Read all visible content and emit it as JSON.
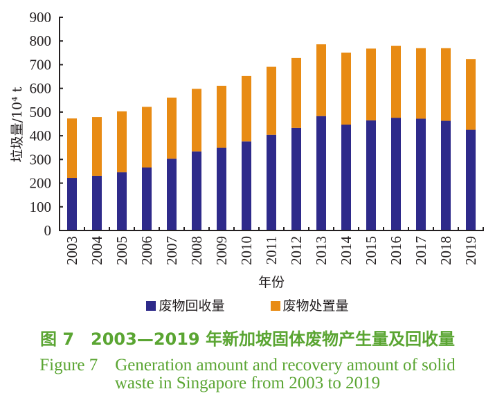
{
  "chart_data": {
    "type": "bar",
    "stacked": true,
    "categories": [
      "2003",
      "2004",
      "2005",
      "2006",
      "2007",
      "2008",
      "2009",
      "2010",
      "2011",
      "2012",
      "2013",
      "2014",
      "2015",
      "2016",
      "2017",
      "2018",
      "2019"
    ],
    "series": [
      {
        "name": "废物回收量",
        "color": "#2e2a8a",
        "values": [
          222,
          231,
          246,
          266,
          303,
          334,
          349,
          376,
          404,
          433,
          483,
          447,
          465,
          476,
          472,
          463,
          425
        ]
      },
      {
        "name": "废物处置量",
        "color": "#e88b14",
        "values": [
          251,
          248,
          257,
          256,
          258,
          264,
          262,
          276,
          287,
          295,
          303,
          304,
          303,
          304,
          298,
          307,
          299
        ]
      }
    ],
    "totals": [
      473,
      479,
      503,
      522,
      561,
      598,
      611,
      652,
      691,
      728,
      786,
      751,
      768,
      780,
      770,
      770,
      724
    ],
    "title": "",
    "xlabel": "年份",
    "ylabel": "垃圾量/10⁴ t",
    "ylim": [
      0,
      900
    ],
    "yticks": [
      0,
      100,
      200,
      300,
      400,
      500,
      600,
      700,
      800,
      900
    ],
    "grid": false,
    "legend_position": "bottom"
  },
  "caption": {
    "cn": "图 7　2003—2019 年新加坡固体废物产生量及回收量",
    "en_line1": "Figure 7　Generation amount and recovery amount of solid",
    "en_line2": "waste in Singapore from 2003 to 2019"
  }
}
